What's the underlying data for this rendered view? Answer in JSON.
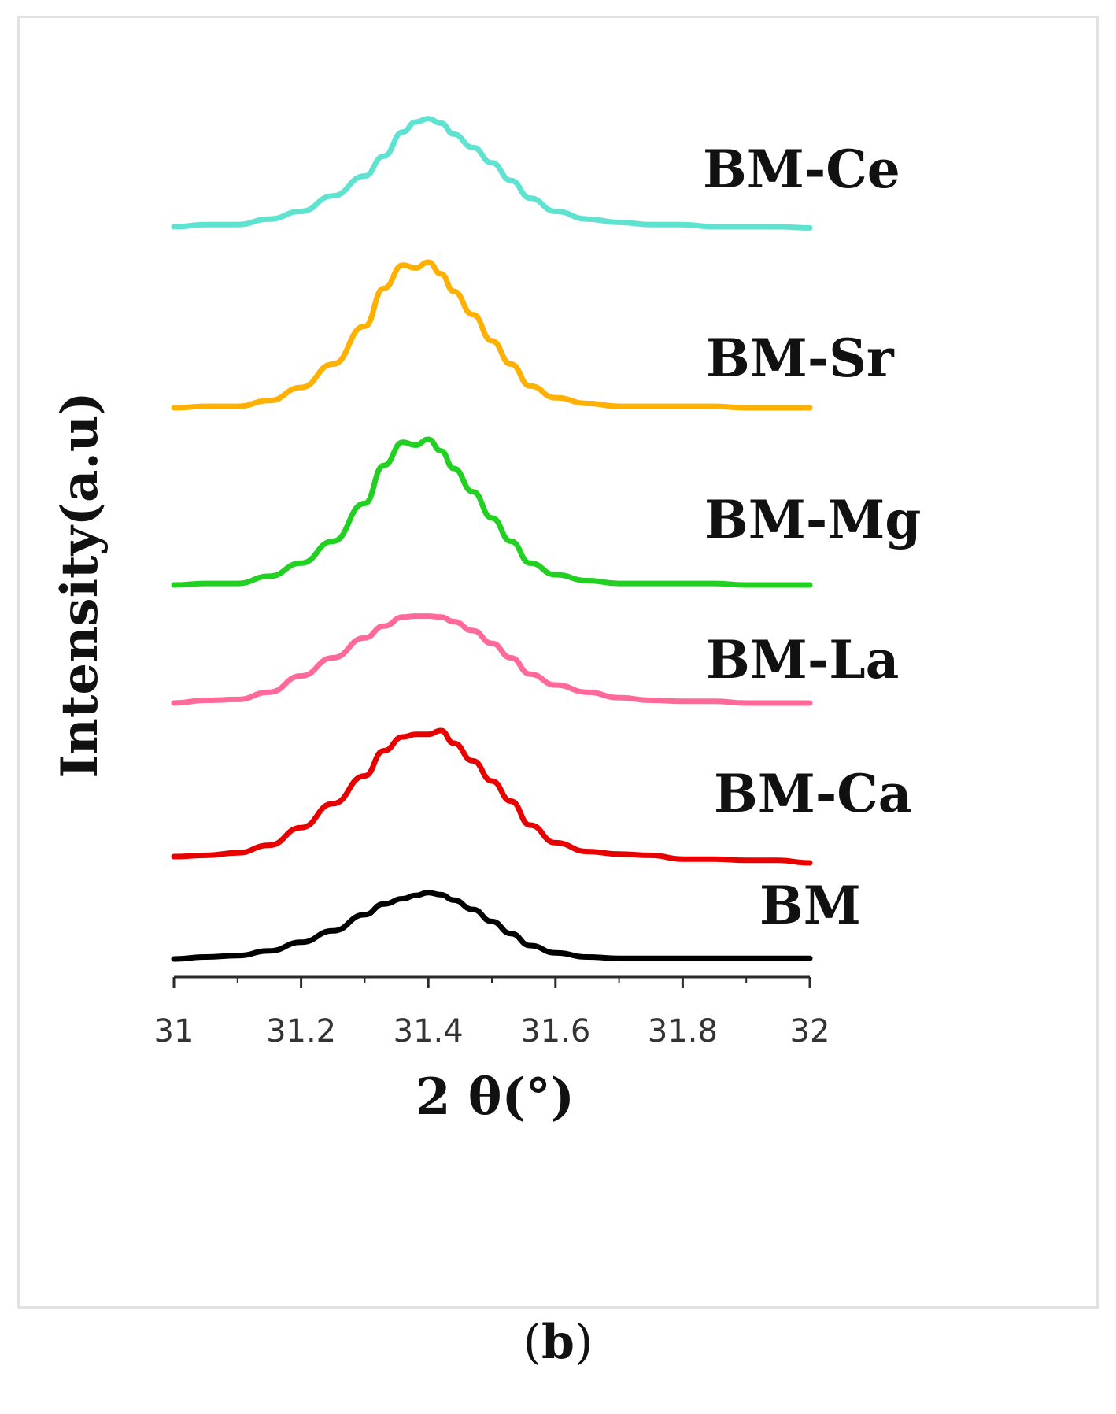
{
  "panel_label": {
    "open": "(",
    "letter": "b",
    "close": ")"
  },
  "chart_data": {
    "type": "line",
    "title": "",
    "xlabel": "2 θ(°)",
    "ylabel": "Intensity(a.u)",
    "xlim": [
      31,
      32
    ],
    "xticks": [
      31,
      31.2,
      31.4,
      31.6,
      31.8,
      32
    ],
    "xtick_labels": [
      "31",
      "31.2",
      "31.4",
      "31.6",
      "31.8",
      "32"
    ],
    "y_units": "arbitrary, stacked with vertical offset",
    "grid": false,
    "legend": "labels placed to the right of each curve",
    "x": [
      31.0,
      31.05,
      31.1,
      31.15,
      31.2,
      31.25,
      31.3,
      31.33,
      31.36,
      31.38,
      31.4,
      31.42,
      31.44,
      31.47,
      31.5,
      31.53,
      31.56,
      31.6,
      31.65,
      31.7,
      31.75,
      31.8,
      31.85,
      31.9,
      31.95,
      32.0
    ],
    "series": [
      {
        "name": "BM-Ce",
        "color": "#5fe3d0",
        "values": [
          0.0,
          0.02,
          0.02,
          0.07,
          0.14,
          0.28,
          0.46,
          0.64,
          0.86,
          0.95,
          0.98,
          0.94,
          0.84,
          0.72,
          0.58,
          0.42,
          0.26,
          0.14,
          0.07,
          0.04,
          0.02,
          0.02,
          0.0,
          0.0,
          0.0,
          -0.01
        ]
      },
      {
        "name": "BM-Sr",
        "color": "#ffb000",
        "values": [
          0.0,
          0.01,
          0.01,
          0.05,
          0.14,
          0.3,
          0.56,
          0.82,
          0.98,
          0.96,
          1.0,
          0.92,
          0.8,
          0.64,
          0.46,
          0.3,
          0.15,
          0.07,
          0.03,
          0.01,
          0.01,
          0.01,
          0.01,
          0.0,
          0.0,
          0.0
        ]
      },
      {
        "name": "BM-Mg",
        "color": "#22d022",
        "values": [
          0.0,
          0.01,
          0.01,
          0.06,
          0.15,
          0.3,
          0.56,
          0.82,
          0.98,
          0.96,
          1.0,
          0.92,
          0.8,
          0.64,
          0.46,
          0.3,
          0.15,
          0.07,
          0.03,
          0.01,
          0.01,
          0.01,
          0.01,
          0.0,
          0.0,
          0.0
        ]
      },
      {
        "name": "BM-La",
        "color": "#ff6a9a",
        "values": [
          0.0,
          0.03,
          0.04,
          0.12,
          0.3,
          0.5,
          0.72,
          0.85,
          0.95,
          0.96,
          0.96,
          0.95,
          0.9,
          0.8,
          0.66,
          0.5,
          0.32,
          0.2,
          0.12,
          0.06,
          0.03,
          0.02,
          0.02,
          0.0,
          0.0,
          0.0
        ]
      },
      {
        "name": "BM-Ca",
        "color": "#e80000",
        "values": [
          0.0,
          0.01,
          0.03,
          0.09,
          0.23,
          0.42,
          0.64,
          0.84,
          0.95,
          0.97,
          0.97,
          1.0,
          0.9,
          0.76,
          0.6,
          0.44,
          0.25,
          0.11,
          0.04,
          0.02,
          0.01,
          -0.02,
          -0.02,
          -0.03,
          -0.03,
          -0.05
        ]
      },
      {
        "name": "BM",
        "color": "#000000",
        "values": [
          0.0,
          0.03,
          0.05,
          0.12,
          0.25,
          0.42,
          0.66,
          0.82,
          0.9,
          0.95,
          0.99,
          0.96,
          0.88,
          0.74,
          0.56,
          0.38,
          0.2,
          0.09,
          0.03,
          0.01,
          0.01,
          0.01,
          0.01,
          0.01,
          0.01,
          0.01
        ]
      }
    ]
  }
}
